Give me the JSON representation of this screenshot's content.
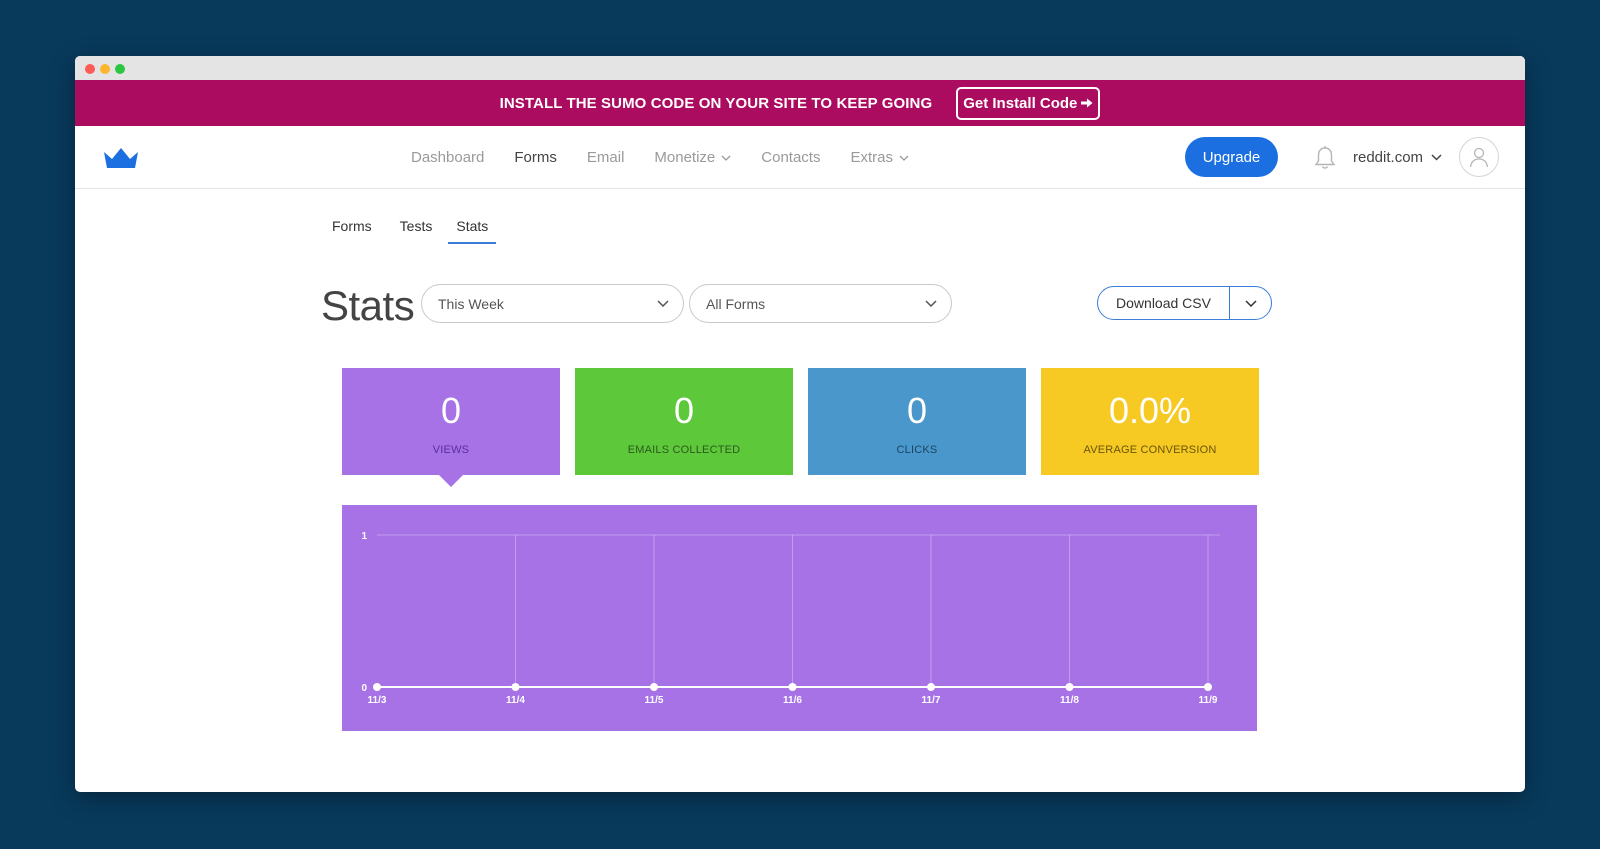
{
  "banner": {
    "text": "INSTALL THE SUMO CODE ON YOUR SITE TO KEEP GOING",
    "button_label": "Get Install Code"
  },
  "nav": {
    "items": [
      {
        "label": "Dashboard",
        "active": false,
        "dropdown": false
      },
      {
        "label": "Forms",
        "active": true,
        "dropdown": false
      },
      {
        "label": "Email",
        "active": false,
        "dropdown": false
      },
      {
        "label": "Monetize",
        "active": false,
        "dropdown": true
      },
      {
        "label": "Contacts",
        "active": false,
        "dropdown": false
      },
      {
        "label": "Extras",
        "active": false,
        "dropdown": true
      }
    ],
    "upgrade_label": "Upgrade",
    "account_label": "reddit.com"
  },
  "subtabs": [
    {
      "label": "Forms",
      "active": false
    },
    {
      "label": "Tests",
      "active": false
    },
    {
      "label": "Stats",
      "active": true
    }
  ],
  "page": {
    "title": "Stats",
    "period_select": "This Week",
    "forms_select": "All Forms",
    "download_label": "Download CSV"
  },
  "cards": [
    {
      "value": "0",
      "label": "VIEWS",
      "color": "#a672e6"
    },
    {
      "value": "0",
      "label": "EMAILS COLLECTED",
      "color": "#5ec83b"
    },
    {
      "value": "0",
      "label": "CLICKS",
      "color": "#4a98cb"
    },
    {
      "value": "0.0%",
      "label": "AVERAGE CONVERSION",
      "color": "#f6c923"
    }
  ],
  "colors": {
    "banner": "#ab0c60",
    "accent": "#1b6fe0",
    "background": "#083a5c"
  },
  "chart_data": {
    "type": "line",
    "categories": [
      "11/3",
      "11/4",
      "11/5",
      "11/6",
      "11/7",
      "11/8",
      "11/9"
    ],
    "series": [
      {
        "values": [
          0,
          0,
          0,
          0,
          0,
          0,
          0
        ]
      }
    ],
    "ylim": [
      0,
      1
    ],
    "yticks": [
      "0",
      "1"
    ],
    "grid": true,
    "background": "#a672e6"
  }
}
